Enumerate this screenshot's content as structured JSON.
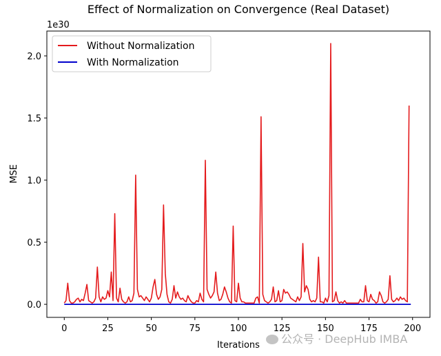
{
  "chart_data": {
    "type": "line",
    "title": "Effect of Normalization on Convergence (Real Dataset)",
    "xlabel": "Iterations",
    "ylabel": "MSE",
    "y_offset_label": "1e30",
    "xlim": [
      -10,
      210
    ],
    "ylim": [
      -0.105,
      2.2
    ],
    "x_ticks": [
      0,
      25,
      50,
      75,
      100,
      125,
      150,
      175,
      200
    ],
    "y_ticks": [
      0.0,
      0.5,
      1.0,
      1.5,
      2.0
    ],
    "x_tick_labels": [
      "0",
      "25",
      "50",
      "75",
      "100",
      "125",
      "150",
      "175",
      "200"
    ],
    "y_tick_labels": [
      "0.0",
      "0.5",
      "1.0",
      "1.5",
      "2.0"
    ],
    "grid": false,
    "legend_position": "top-left",
    "series": [
      {
        "name": "Without Normalization",
        "color": "#e41a1c",
        "peaks_note": "values in units of 1e30",
        "values": [
          0.01,
          0.03,
          0.17,
          0.03,
          0.01,
          0.01,
          0.02,
          0.04,
          0.05,
          0.02,
          0.04,
          0.03,
          0.09,
          0.16,
          0.03,
          0.02,
          0.01,
          0.02,
          0.05,
          0.3,
          0.06,
          0.02,
          0.06,
          0.04,
          0.05,
          0.11,
          0.06,
          0.26,
          0.03,
          0.73,
          0.05,
          0.02,
          0.13,
          0.04,
          0.02,
          0.01,
          0.02,
          0.06,
          0.02,
          0.03,
          0.09,
          1.04,
          0.12,
          0.06,
          0.07,
          0.05,
          0.03,
          0.06,
          0.04,
          0.02,
          0.05,
          0.14,
          0.2,
          0.08,
          0.04,
          0.06,
          0.12,
          0.8,
          0.25,
          0.08,
          0.02,
          0.01,
          0.04,
          0.15,
          0.05,
          0.1,
          0.06,
          0.04,
          0.05,
          0.03,
          0.02,
          0.07,
          0.04,
          0.02,
          0.01,
          0.01,
          0.03,
          0.02,
          0.09,
          0.04,
          0.02,
          1.16,
          0.12,
          0.08,
          0.05,
          0.07,
          0.1,
          0.26,
          0.09,
          0.03,
          0.04,
          0.08,
          0.14,
          0.1,
          0.05,
          0.02,
          0.01,
          0.63,
          0.03,
          0.02,
          0.17,
          0.05,
          0.02,
          0.02,
          0.01,
          0.01,
          0.01,
          0.01,
          0.01,
          0.01,
          0.05,
          0.06,
          0.01,
          1.51,
          0.08,
          0.03,
          0.02,
          0.01,
          0.02,
          0.04,
          0.14,
          0.02,
          0.03,
          0.11,
          0.02,
          0.03,
          0.12,
          0.09,
          0.1,
          0.08,
          0.05,
          0.04,
          0.03,
          0.02,
          0.06,
          0.03,
          0.06,
          0.49,
          0.1,
          0.15,
          0.12,
          0.04,
          0.02,
          0.03,
          0.02,
          0.05,
          0.38,
          0.02,
          0.02,
          0.01,
          0.05,
          0.02,
          0.07,
          2.1,
          0.02,
          0.03,
          0.1,
          0.03,
          0.01,
          0.02,
          0.01,
          0.03,
          0.01,
          0.01,
          0.01,
          0.01,
          0.01,
          0.01,
          0.01,
          0.01,
          0.04,
          0.02,
          0.02,
          0.15,
          0.03,
          0.02,
          0.08,
          0.04,
          0.03,
          0.01,
          0.02,
          0.1,
          0.07,
          0.02,
          0.01,
          0.02,
          0.04,
          0.23,
          0.04,
          0.02,
          0.03,
          0.05,
          0.03,
          0.06,
          0.04,
          0.05,
          0.03,
          0.02,
          1.6
        ]
      },
      {
        "name": "With Normalization",
        "color": "#0000cc",
        "values_constant": 0.0,
        "length": 200
      }
    ]
  },
  "watermark": {
    "text": "公众号 · DeepHub IMBA"
  }
}
